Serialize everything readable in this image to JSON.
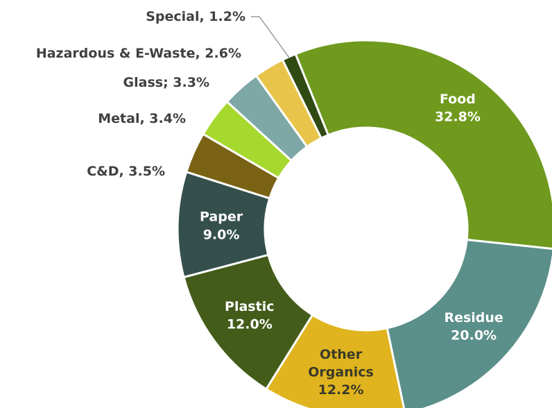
{
  "chart_data": {
    "type": "pie",
    "title": "",
    "slices": [
      {
        "name": "Food",
        "value": 32.8,
        "label": "32.8%",
        "color": "#6f9a1e"
      },
      {
        "name": "Residue",
        "value": 20.0,
        "label": "20.0%",
        "color": "#5b8f8a"
      },
      {
        "name": "Other Organics",
        "value": 12.2,
        "label": "12.2%",
        "color": "#e0b41e"
      },
      {
        "name": "Plastic",
        "value": 12.0,
        "label": "12.0%",
        "color": "#445c1a"
      },
      {
        "name": "Paper",
        "value": 9.0,
        "label": "9.0%",
        "color": "#35504c"
      },
      {
        "name": "C&D",
        "value": 3.5,
        "label": "C&D, 3.5%",
        "color": "#7a6214"
      },
      {
        "name": "Metal",
        "value": 3.4,
        "label": "Metal, 3.4%",
        "color": "#a6d92e"
      },
      {
        "name": "Glass",
        "value": 3.3,
        "label": "Glass; 3.3%",
        "color": "#7ea8a6"
      },
      {
        "name": "Hazardous & E-Waste",
        "value": 2.6,
        "label": "Hazardous & E-Waste, 2.6%",
        "color": "#e8c54a"
      },
      {
        "name": "Special",
        "value": 1.2,
        "label": "Special, 1.2%",
        "color": "#2f4a12"
      }
    ]
  }
}
